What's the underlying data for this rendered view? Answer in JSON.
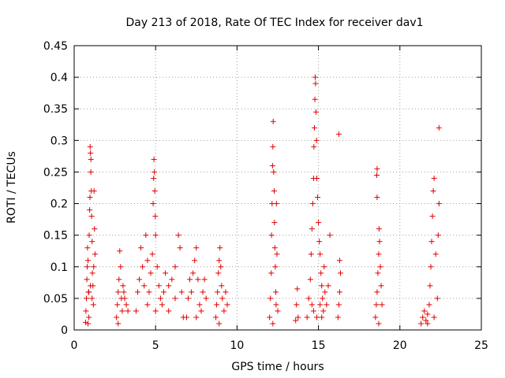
{
  "chart_data": {
    "type": "scatter",
    "title": "Day 213 of 2018, Rate Of TEC Index for receiver dav1",
    "xlabel": "GPS time / hours",
    "ylabel": "ROTI / TECUs",
    "xlim": [
      0,
      25
    ],
    "ylim": [
      0,
      0.45
    ],
    "xticks": [
      0,
      5,
      10,
      15,
      20,
      25
    ],
    "xtick_labels": [
      "0",
      "5",
      "10",
      "15",
      "20",
      "25"
    ],
    "yticks": [
      0,
      0.05,
      0.1,
      0.15,
      0.2,
      0.25,
      0.3,
      0.35,
      0.4,
      0.45
    ],
    "ytick_labels": [
      "0",
      "0.05",
      "0.1",
      "0.15",
      "0.2",
      "0.25",
      "0.3",
      "0.35",
      "0.4",
      "0.45"
    ],
    "grid": true,
    "marker": "+",
    "color": "#e00000",
    "series": [
      {
        "name": "ROTI",
        "points": [
          [
            0.7,
            0.012
          ],
          [
            0.72,
            0.03
          ],
          [
            0.75,
            0.05
          ],
          [
            0.78,
            0.08
          ],
          [
            0.8,
            0.1
          ],
          [
            0.82,
            0.13
          ],
          [
            0.85,
            0.11
          ],
          [
            0.88,
            0.06
          ],
          [
            0.9,
            0.02
          ],
          [
            0.92,
            0.15
          ],
          [
            0.95,
            0.19
          ],
          [
            0.97,
            0.21
          ],
          [
            0.98,
            0.29
          ],
          [
            1.0,
            0.28
          ],
          [
            1.02,
            0.25
          ],
          [
            1.03,
            0.27
          ],
          [
            1.05,
            0.22
          ],
          [
            1.07,
            0.18
          ],
          [
            1.1,
            0.14
          ],
          [
            1.12,
            0.09
          ],
          [
            1.15,
            0.07
          ],
          [
            1.18,
            0.04
          ],
          [
            1.2,
            0.1
          ],
          [
            1.22,
            0.22
          ],
          [
            1.25,
            0.16
          ],
          [
            1.28,
            0.12
          ],
          [
            0.9,
            0.06
          ],
          [
            1.0,
            0.07
          ],
          [
            1.1,
            0.05
          ],
          [
            0.85,
            0.01
          ],
          [
            2.6,
            0.02
          ],
          [
            2.65,
            0.04
          ],
          [
            2.7,
            0.06
          ],
          [
            2.75,
            0.08
          ],
          [
            2.8,
            0.125
          ],
          [
            2.85,
            0.1
          ],
          [
            2.9,
            0.05
          ],
          [
            2.95,
            0.03
          ],
          [
            3.0,
            0.07
          ],
          [
            3.1,
            0.05
          ],
          [
            3.2,
            0.04
          ],
          [
            3.3,
            0.03
          ],
          [
            2.7,
            0.01
          ],
          [
            3.05,
            0.06
          ],
          [
            3.8,
            0.03
          ],
          [
            3.9,
            0.06
          ],
          [
            4.0,
            0.08
          ],
          [
            4.1,
            0.13
          ],
          [
            4.2,
            0.1
          ],
          [
            4.3,
            0.07
          ],
          [
            4.4,
            0.15
          ],
          [
            4.5,
            0.11
          ],
          [
            4.6,
            0.06
          ],
          [
            4.7,
            0.09
          ],
          [
            4.8,
            0.12
          ],
          [
            4.85,
            0.2
          ],
          [
            4.88,
            0.24
          ],
          [
            4.9,
            0.27
          ],
          [
            4.93,
            0.25
          ],
          [
            4.95,
            0.22
          ],
          [
            4.98,
            0.18
          ],
          [
            5.0,
            0.15
          ],
          [
            5.1,
            0.1
          ],
          [
            5.2,
            0.07
          ],
          [
            5.3,
            0.05
          ],
          [
            5.4,
            0.04
          ],
          [
            5.5,
            0.06
          ],
          [
            5.6,
            0.09
          ],
          [
            5.8,
            0.07
          ],
          [
            6.0,
            0.08
          ],
          [
            6.2,
            0.1
          ],
          [
            6.4,
            0.15
          ],
          [
            6.5,
            0.13
          ],
          [
            6.6,
            0.06
          ],
          [
            6.7,
            0.02
          ],
          [
            4.5,
            0.04
          ],
          [
            5.0,
            0.03
          ],
          [
            5.8,
            0.03
          ],
          [
            6.2,
            0.05
          ],
          [
            6.9,
            0.02
          ],
          [
            7.0,
            0.05
          ],
          [
            7.1,
            0.08
          ],
          [
            7.2,
            0.06
          ],
          [
            7.3,
            0.09
          ],
          [
            7.4,
            0.11
          ],
          [
            7.5,
            0.13
          ],
          [
            7.6,
            0.08
          ],
          [
            7.7,
            0.04
          ],
          [
            7.8,
            0.03
          ],
          [
            7.9,
            0.06
          ],
          [
            8.0,
            0.08
          ],
          [
            8.1,
            0.05
          ],
          [
            7.5,
            0.02
          ],
          [
            8.7,
            0.02
          ],
          [
            8.75,
            0.04
          ],
          [
            8.8,
            0.06
          ],
          [
            8.85,
            0.09
          ],
          [
            8.9,
            0.11
          ],
          [
            8.95,
            0.13
          ],
          [
            9.0,
            0.1
          ],
          [
            9.05,
            0.07
          ],
          [
            9.1,
            0.05
          ],
          [
            9.2,
            0.03
          ],
          [
            9.3,
            0.06
          ],
          [
            9.4,
            0.04
          ],
          [
            8.9,
            0.01
          ],
          [
            12.0,
            0.02
          ],
          [
            12.05,
            0.05
          ],
          [
            12.1,
            0.09
          ],
          [
            12.12,
            0.15
          ],
          [
            12.15,
            0.2
          ],
          [
            12.18,
            0.26
          ],
          [
            12.2,
            0.29
          ],
          [
            12.22,
            0.33
          ],
          [
            12.25,
            0.25
          ],
          [
            12.28,
            0.22
          ],
          [
            12.3,
            0.17
          ],
          [
            12.32,
            0.13
          ],
          [
            12.35,
            0.1
          ],
          [
            12.38,
            0.06
          ],
          [
            12.4,
            0.04
          ],
          [
            12.42,
            0.2
          ],
          [
            12.45,
            0.12
          ],
          [
            12.5,
            0.03
          ],
          [
            12.2,
            0.01
          ],
          [
            13.6,
            0.015
          ],
          [
            13.65,
            0.04
          ],
          [
            13.7,
            0.065
          ],
          [
            13.75,
            0.02
          ],
          [
            14.3,
            0.02
          ],
          [
            14.4,
            0.05
          ],
          [
            14.5,
            0.08
          ],
          [
            14.55,
            0.12
          ],
          [
            14.6,
            0.16
          ],
          [
            14.65,
            0.2
          ],
          [
            14.7,
            0.24
          ],
          [
            14.72,
            0.29
          ],
          [
            14.75,
            0.32
          ],
          [
            14.78,
            0.365
          ],
          [
            14.8,
            0.4
          ],
          [
            14.82,
            0.39
          ],
          [
            14.85,
            0.345
          ],
          [
            14.88,
            0.3
          ],
          [
            14.9,
            0.24
          ],
          [
            14.95,
            0.21
          ],
          [
            15.0,
            0.17
          ],
          [
            15.05,
            0.14
          ],
          [
            15.1,
            0.12
          ],
          [
            15.15,
            0.09
          ],
          [
            15.2,
            0.07
          ],
          [
            15.25,
            0.05
          ],
          [
            15.3,
            0.03
          ],
          [
            15.35,
            0.1
          ],
          [
            15.4,
            0.06
          ],
          [
            15.5,
            0.04
          ],
          [
            15.6,
            0.07
          ],
          [
            15.7,
            0.15
          ],
          [
            14.6,
            0.04
          ],
          [
            14.7,
            0.03
          ],
          [
            14.9,
            0.02
          ],
          [
            15.1,
            0.04
          ],
          [
            15.2,
            0.02
          ],
          [
            16.2,
            0.02
          ],
          [
            16.25,
            0.04
          ],
          [
            16.3,
            0.06
          ],
          [
            16.35,
            0.09
          ],
          [
            16.3,
            0.11
          ],
          [
            16.25,
            0.31
          ],
          [
            18.5,
            0.02
          ],
          [
            18.55,
            0.04
          ],
          [
            18.6,
            0.06
          ],
          [
            18.65,
            0.09
          ],
          [
            18.7,
            0.12
          ],
          [
            18.72,
            0.16
          ],
          [
            18.75,
            0.14
          ],
          [
            18.6,
            0.21
          ],
          [
            18.58,
            0.245
          ],
          [
            18.6,
            0.255
          ],
          [
            18.8,
            0.1
          ],
          [
            18.85,
            0.07
          ],
          [
            18.9,
            0.04
          ],
          [
            18.7,
            0.01
          ],
          [
            21.3,
            0.01
          ],
          [
            21.4,
            0.02
          ],
          [
            21.5,
            0.03
          ],
          [
            21.6,
            0.015
          ],
          [
            21.7,
            0.025
          ],
          [
            21.8,
            0.04
          ],
          [
            21.85,
            0.07
          ],
          [
            21.9,
            0.1
          ],
          [
            21.95,
            0.14
          ],
          [
            22.0,
            0.18
          ],
          [
            22.05,
            0.22
          ],
          [
            22.1,
            0.24
          ],
          [
            22.2,
            0.12
          ],
          [
            22.3,
            0.05
          ],
          [
            22.35,
            0.15
          ],
          [
            22.4,
            0.2
          ],
          [
            22.4,
            0.32
          ],
          [
            21.7,
            0.01
          ],
          [
            22.1,
            0.02
          ]
        ]
      }
    ]
  }
}
